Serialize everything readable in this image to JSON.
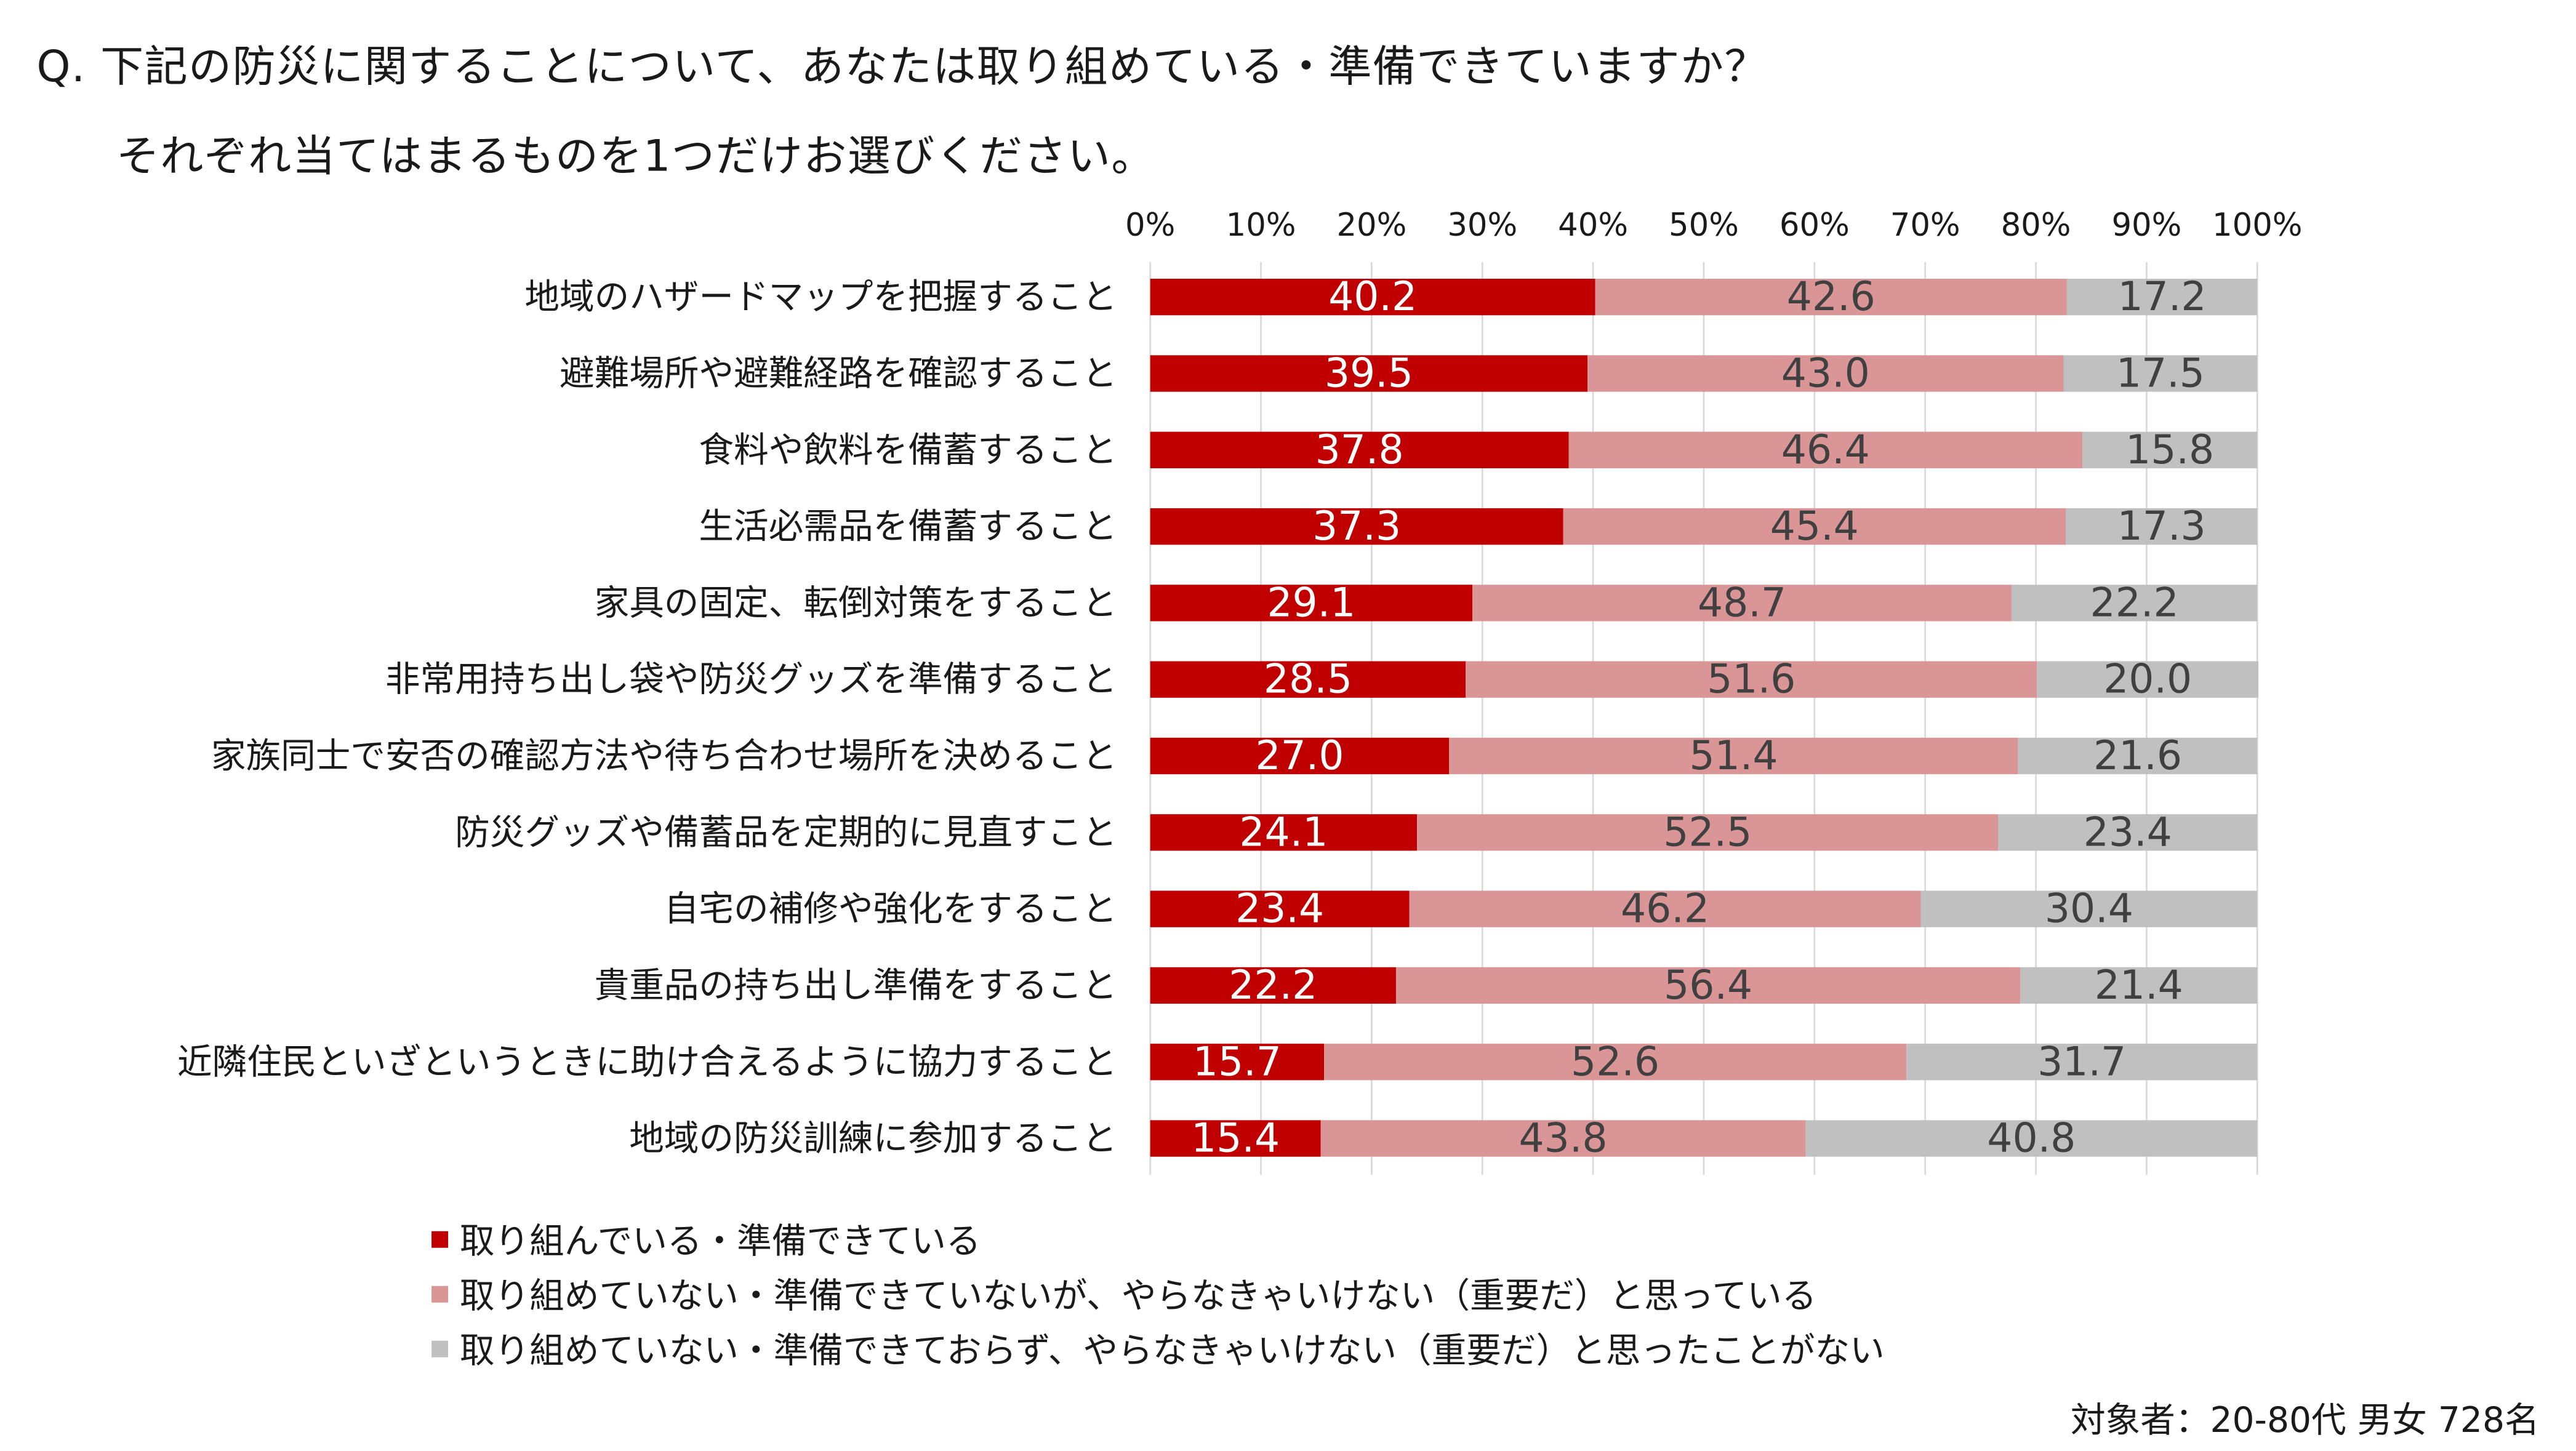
{
  "question": {
    "line1": "Q. 下記の防災に関することについて、あなたは取り組めている・準備できていますか？",
    "line2": "それぞれ当てはまるものを1つだけお選びください。"
  },
  "footnote": "対象者：20-80代 男女 728名",
  "chart_data": {
    "type": "bar",
    "orientation": "horizontal",
    "stacked": true,
    "percent_stacked": true,
    "x_ticks": [
      "0%",
      "10%",
      "20%",
      "30%",
      "40%",
      "50%",
      "60%",
      "70%",
      "80%",
      "90%",
      "100%"
    ],
    "xlim": [
      0,
      100
    ],
    "grid": true,
    "legend_position": "bottom-left",
    "categories": [
      "地域のハザードマップを把握すること",
      "避難場所や避難経路を確認すること",
      "食料や飲料を備蓄すること",
      "生活必需品を備蓄すること",
      "家具の固定、転倒対策をすること",
      "非常用持ち出し袋や防災グッズを準備すること",
      "家族同士で安否の確認方法や待ち合わせ場所を決めること",
      "防災グッズや備蓄品を定期的に見直すこと",
      "自宅の補修や強化をすること",
      "貴重品の持ち出し準備をすること",
      "近隣住民といざというときに助け合えるように協力すること",
      "地域の防災訓練に参加すること"
    ],
    "series": [
      {
        "name": "取り組んでいる・準備できている",
        "color": "#c00000",
        "label_color": "#ffffff",
        "values": [
          "40.2",
          "39.5",
          "37.8",
          "37.3",
          "29.1",
          "28.5",
          "27.0",
          "24.1",
          "23.4",
          "22.2",
          "15.7",
          "15.4"
        ]
      },
      {
        "name": "取り組めていない・準備できていないが、やらなきゃいけない（重要だ）と思っている",
        "color": "#da9696",
        "label_color": "#404040",
        "values": [
          "42.6",
          "43.0",
          "46.4",
          "45.4",
          "48.7",
          "51.6",
          "51.4",
          "52.5",
          "46.2",
          "56.4",
          "52.6",
          "43.8"
        ]
      },
      {
        "name": "取り組めていない・準備できておらず、やらなきゃいけない（重要だ）と思ったことがない",
        "color": "#c0c0c0",
        "label_color": "#404040",
        "values": [
          "17.2",
          "17.5",
          "15.8",
          "17.3",
          "22.2",
          "20.0",
          "21.6",
          "23.4",
          "30.4",
          "21.4",
          "31.7",
          "40.8"
        ]
      }
    ]
  }
}
